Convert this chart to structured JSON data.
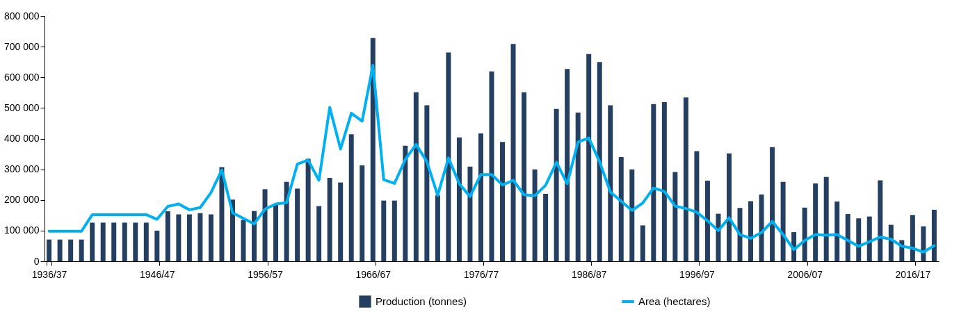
{
  "chart_data": {
    "type": "bar",
    "categories": [
      "1936/37",
      null,
      null,
      null,
      null,
      null,
      null,
      null,
      null,
      null,
      "1946/47",
      null,
      null,
      null,
      null,
      null,
      null,
      null,
      null,
      null,
      "1956/57",
      null,
      null,
      null,
      null,
      null,
      null,
      null,
      null,
      null,
      "1966/67",
      null,
      null,
      null,
      null,
      null,
      null,
      null,
      null,
      null,
      "1976/77",
      null,
      null,
      null,
      null,
      null,
      null,
      null,
      null,
      null,
      "1986/87",
      null,
      null,
      null,
      null,
      null,
      null,
      null,
      null,
      null,
      "1996/97",
      null,
      null,
      null,
      null,
      null,
      null,
      null,
      null,
      null,
      "2006/07",
      null,
      null,
      null,
      null,
      null,
      null,
      null,
      null,
      null,
      "2016/17",
      null,
      null
    ],
    "series": [
      {
        "name": "Production (tonnes)",
        "color": "#243f60",
        "values": [
          71000,
          71000,
          71000,
          71000,
          126000,
          126000,
          126000,
          126000,
          126000,
          126000,
          100000,
          163000,
          153000,
          153000,
          157000,
          153000,
          307000,
          201000,
          135000,
          164000,
          235000,
          185000,
          259000,
          237000,
          334000,
          180000,
          272000,
          257000,
          414000,
          313000,
          728000,
          198000,
          198000,
          377000,
          551000,
          509000,
          215000,
          681000,
          404000,
          309000,
          417000,
          619000,
          389000,
          709000,
          551000,
          300000,
          220000,
          497000,
          627000,
          485000,
          676000,
          650000,
          509000,
          340000,
          300000,
          117000,
          513000,
          519000,
          291000,
          534000,
          359000,
          263000,
          155000,
          352000,
          174000,
          196000,
          218000,
          372000,
          259000,
          95000,
          175000,
          254000,
          275000,
          195000,
          154000,
          140000,
          146000,
          264000,
          119000,
          69000,
          151000,
          114000,
          168000
        ]
      },
      {
        "name": "Area (hectares)",
        "type": "line",
        "color": "#00b0f0",
        "values": [
          98000,
          98000,
          98000,
          98000,
          152000,
          152000,
          152000,
          152000,
          152000,
          152000,
          137000,
          179000,
          187000,
          168000,
          175000,
          224000,
          298000,
          158000,
          140000,
          122000,
          170000,
          187000,
          191000,
          317000,
          330000,
          264000,
          502000,
          366000,
          483000,
          457000,
          639000,
          266000,
          254000,
          332000,
          381000,
          325000,
          215000,
          337000,
          253000,
          211000,
          283000,
          283000,
          249000,
          264000,
          217000,
          214000,
          248000,
          323000,
          253000,
          389000,
          402000,
          325000,
          226000,
          196000,
          166000,
          190000,
          239000,
          228000,
          180000,
          172000,
          160000,
          132000,
          100000,
          142000,
          87000,
          75000,
          94000,
          130000,
          87000,
          38000,
          68000,
          87000,
          85000,
          87000,
          68000,
          49000,
          64000,
          79000,
          72000,
          49000,
          43000,
          30000,
          51000
        ]
      }
    ],
    "ylim": [
      0,
      800000
    ],
    "yticks": [
      {
        "value": 0,
        "label": "0"
      },
      {
        "value": 100000,
        "label": "100 000"
      },
      {
        "value": 200000,
        "label": "200 000"
      },
      {
        "value": 300000,
        "label": "300 000"
      },
      {
        "value": 400000,
        "label": "400 000"
      },
      {
        "value": 500000,
        "label": "500 000"
      },
      {
        "value": 600000,
        "label": "600 000"
      },
      {
        "value": 700000,
        "label": "700 000"
      },
      {
        "value": 800000,
        "label": "800 000"
      }
    ],
    "legend": "bottom",
    "grid": false
  }
}
